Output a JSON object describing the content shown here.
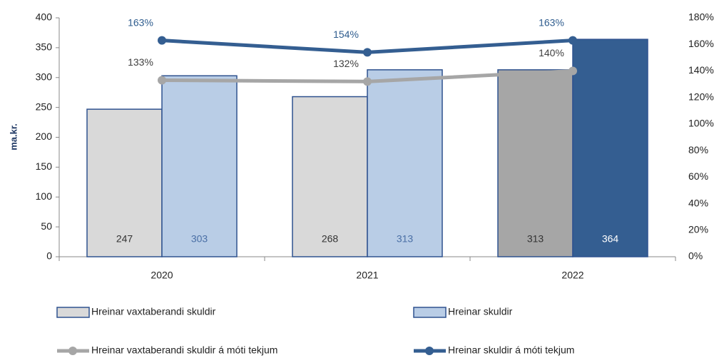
{
  "chart_data": {
    "type": "bar",
    "ylabel": "ma.kr.",
    "categories": [
      "2020",
      "2021",
      "2022"
    ],
    "ylim": [
      0,
      400
    ],
    "yticks": [
      0,
      50,
      100,
      150,
      200,
      250,
      300,
      350,
      400
    ],
    "y2lim": [
      0,
      180
    ],
    "y2ticks": [
      {
        "value": 0,
        "label": "0%"
      },
      {
        "value": 20,
        "label": "20%"
      },
      {
        "value": 40,
        "label": "40%"
      },
      {
        "value": 60,
        "label": "60%"
      },
      {
        "value": 80,
        "label": "80%"
      },
      {
        "value": 100,
        "label": "100%"
      },
      {
        "value": 120,
        "label": "120%"
      },
      {
        "value": 140,
        "label": "140%"
      },
      {
        "value": 160,
        "label": "160%"
      },
      {
        "value": 180,
        "label": "180%"
      }
    ],
    "series": [
      {
        "name": "Hreinar vaxtaberandi skuldir",
        "type": "bar",
        "color": "#d9d9d9",
        "colors": [
          "#d9d9d9",
          "#d9d9d9",
          "#a6a6a6"
        ],
        "label_colors": [
          "#333333",
          "#333333",
          "#333333"
        ],
        "values": [
          247,
          268,
          313
        ]
      },
      {
        "name": "Hreinar skuldir",
        "type": "bar",
        "color": "#b9cde6",
        "colors": [
          "#b9cde6",
          "#b9cde6",
          "#345e91"
        ],
        "label_colors": [
          "#4a6fa5",
          "#4a6fa5",
          "#ffffff"
        ],
        "values": [
          303,
          313,
          364
        ]
      },
      {
        "name": "Hreinar vaxtaberandi skuldir á móti tekjum",
        "type": "line",
        "axis": "y2",
        "color": "#a6a6a6",
        "label_color": "#404040",
        "values": [
          133,
          132,
          140
        ],
        "value_labels": [
          "133%",
          "132%",
          "140%"
        ]
      },
      {
        "name": "Hreinar skuldir á móti tekjum",
        "type": "line",
        "axis": "y2",
        "color": "#345e91",
        "label_color": "#2e5c8e",
        "values": [
          163,
          154,
          163
        ],
        "value_labels": [
          "163%",
          "154%",
          "163%"
        ]
      }
    ]
  }
}
